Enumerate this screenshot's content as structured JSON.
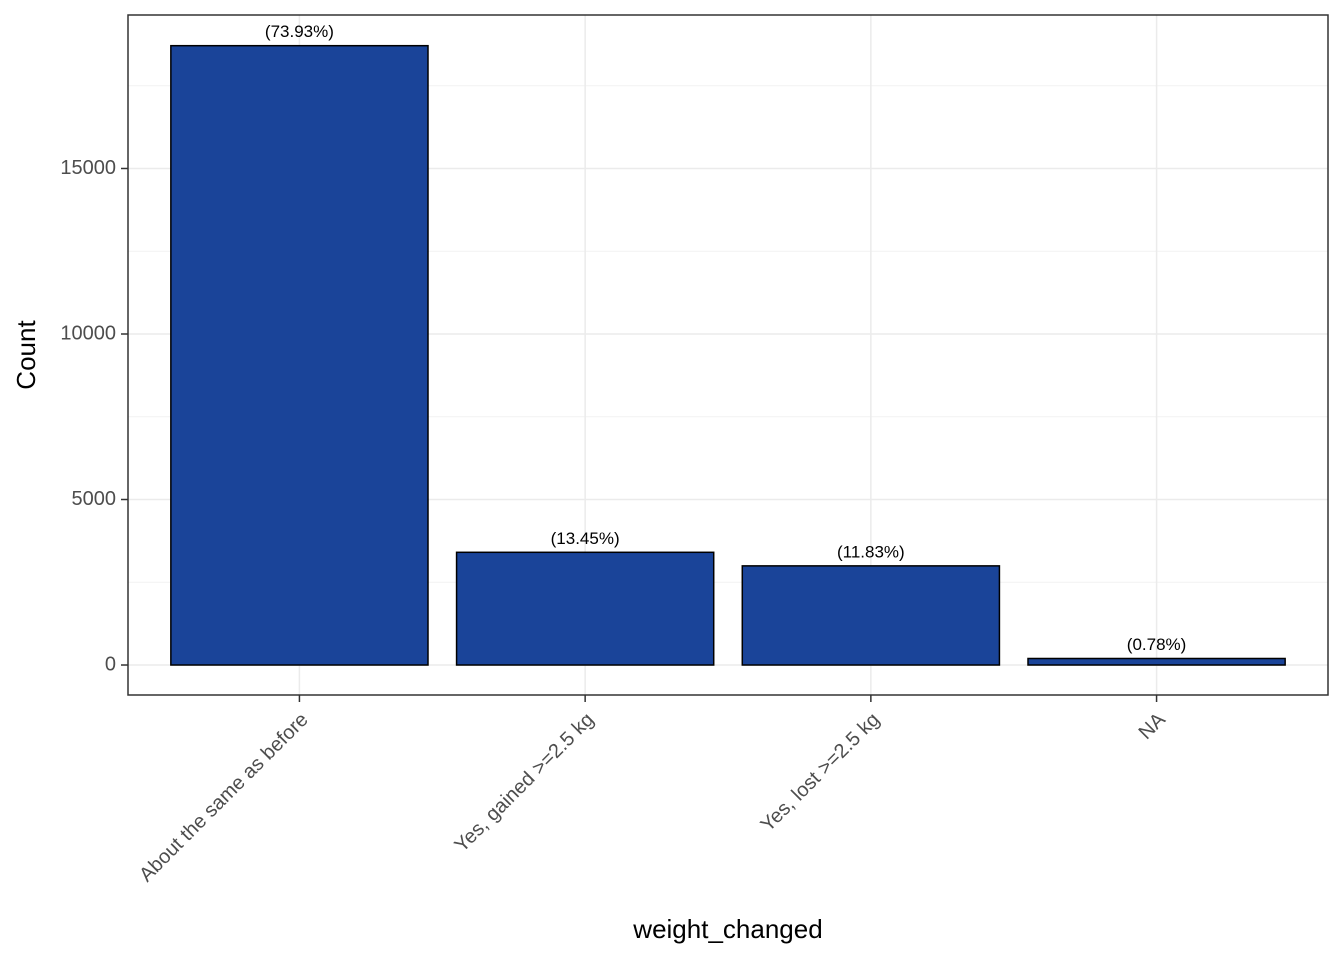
{
  "chart_data": {
    "type": "bar",
    "x_label": "weight_changed",
    "y_label": "Count",
    "categories": [
      "About the same as before",
      "Yes, gained >=2.5 kg",
      "Yes, lost >=2.5 kg",
      "NA"
    ],
    "values": [
      18710,
      3405,
      2995,
      197
    ],
    "bar_labels": [
      "(73.93%)",
      "(13.45%)",
      "(11.83%)",
      "(0.78%)"
    ],
    "color": "#1a4499",
    "ylim": [
      -906,
      19637
    ],
    "yticks": [
      0,
      5000,
      10000,
      15000
    ],
    "minor_yticks": [
      2500,
      7500,
      12500,
      17500
    ],
    "grid": true
  }
}
